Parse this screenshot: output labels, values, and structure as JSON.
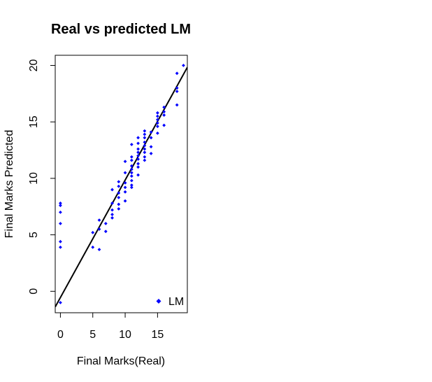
{
  "chart_data": {
    "type": "scatter",
    "title": "Real vs predicted LM",
    "xlabel": "Final Marks(Real)",
    "ylabel": "Final Marks Predicted",
    "xlim": [
      -0.8,
      19.6
    ],
    "ylim": [
      -1.9,
      20.9
    ],
    "x_ticks": [
      0,
      5,
      10,
      15
    ],
    "y_ticks": [
      0,
      5,
      10,
      15,
      20
    ],
    "grid": false,
    "legend_position": "bottom-right",
    "series": [
      {
        "name": "LM",
        "color": "#0000ff",
        "marker": "diamond",
        "points": [
          [
            0,
            -1.0
          ],
          [
            0,
            3.9
          ],
          [
            0,
            4.4
          ],
          [
            0,
            6.0
          ],
          [
            0,
            7.0
          ],
          [
            0,
            7.6
          ],
          [
            0,
            7.8
          ],
          [
            5,
            3.9
          ],
          [
            5,
            5.2
          ],
          [
            6,
            3.7
          ],
          [
            6,
            5.5
          ],
          [
            6,
            6.3
          ],
          [
            7,
            5.3
          ],
          [
            7,
            6.0
          ],
          [
            8,
            6.5
          ],
          [
            8,
            6.8
          ],
          [
            8,
            7.2
          ],
          [
            8,
            7.8
          ],
          [
            8,
            9.0
          ],
          [
            9,
            7.3
          ],
          [
            9,
            7.7
          ],
          [
            9,
            8.3
          ],
          [
            9,
            8.7
          ],
          [
            9,
            9.3
          ],
          [
            9,
            9.7
          ],
          [
            10,
            8.0
          ],
          [
            10,
            8.8
          ],
          [
            10,
            9.2
          ],
          [
            10,
            9.6
          ],
          [
            10,
            10.5
          ],
          [
            10,
            11.5
          ],
          [
            11,
            9.2
          ],
          [
            11,
            9.4
          ],
          [
            11,
            9.8
          ],
          [
            11,
            10.2
          ],
          [
            11,
            10.5
          ],
          [
            11,
            10.8
          ],
          [
            11,
            11.1
          ],
          [
            11,
            11.6
          ],
          [
            11,
            11.9
          ],
          [
            11,
            13.0
          ],
          [
            12,
            10.3
          ],
          [
            12,
            11.0
          ],
          [
            12,
            11.3
          ],
          [
            12,
            11.7
          ],
          [
            12,
            12.0
          ],
          [
            12,
            12.3
          ],
          [
            12,
            12.6
          ],
          [
            12,
            13.1
          ],
          [
            12,
            13.6
          ],
          [
            13,
            11.6
          ],
          [
            13,
            11.9
          ],
          [
            13,
            12.3
          ],
          [
            13,
            12.6
          ],
          [
            13,
            12.9
          ],
          [
            13,
            13.2
          ],
          [
            13,
            13.6
          ],
          [
            13,
            13.9
          ],
          [
            13,
            14.2
          ],
          [
            14,
            12.2
          ],
          [
            14,
            12.8
          ],
          [
            14,
            13.6
          ],
          [
            14,
            14.1
          ],
          [
            15,
            14.0
          ],
          [
            15,
            14.6
          ],
          [
            15,
            14.9
          ],
          [
            15,
            15.2
          ],
          [
            15,
            15.5
          ],
          [
            15,
            15.8
          ],
          [
            16,
            14.7
          ],
          [
            16,
            15.6
          ],
          [
            16,
            15.9
          ],
          [
            16,
            16.3
          ],
          [
            18,
            16.5
          ],
          [
            18,
            17.7
          ],
          [
            18,
            18.0
          ],
          [
            18,
            19.3
          ],
          [
            19,
            20.0
          ]
        ]
      }
    ],
    "reference_line": {
      "intercept": -0.55,
      "slope": 1.04,
      "color": "#000000"
    }
  }
}
